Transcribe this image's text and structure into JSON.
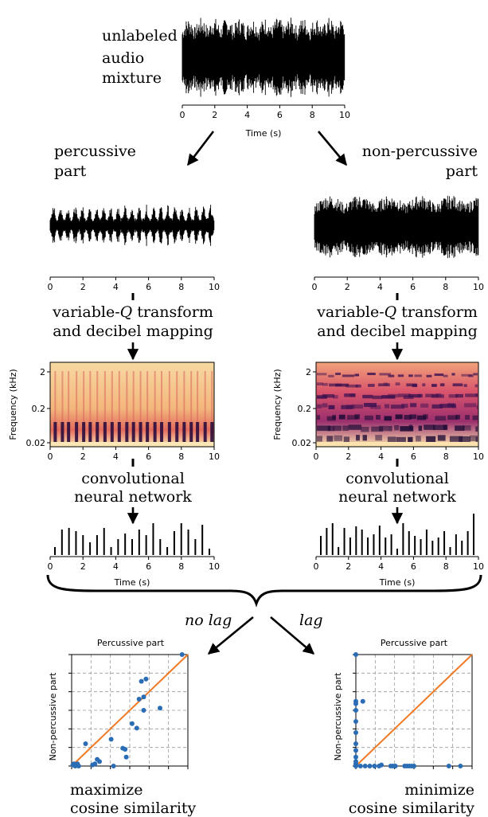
{
  "top": {
    "label_lines": [
      "unlabeled",
      "audio",
      "mixture"
    ],
    "xlabel": "Time (s)",
    "ticks": [
      "0",
      "2",
      "4",
      "6",
      "8",
      "10"
    ]
  },
  "branches": {
    "left_title_lines": [
      "percussive",
      "part"
    ],
    "right_title_lines": [
      "non-percussive",
      "part"
    ]
  },
  "waveform_ticks": [
    "0",
    "2",
    "4",
    "6",
    "8",
    "10"
  ],
  "transform_label": {
    "line1_prefix": "variable-",
    "line1_italic": "Q",
    "line1_suffix": " transform",
    "line2": "and decibel mapping"
  },
  "spectrogram": {
    "ylabel": "Frequency (kHz)",
    "yticks": [
      "2",
      "0.2",
      "0.02"
    ],
    "xticks": [
      "0",
      "2",
      "4",
      "6",
      "8",
      "10"
    ]
  },
  "network_label": [
    "convolutional",
    "neural network"
  ],
  "activation_xlabel": "Time (s)",
  "activation_ticks": [
    "0",
    "2",
    "4",
    "6",
    "8",
    "10"
  ],
  "merge": {
    "no_lag": "no lag",
    "lag": "lag"
  },
  "chart_data": [
    {
      "type": "scatter",
      "title": "Percussive part",
      "xlabel": "",
      "ylabel": "Non-percussive part",
      "grid": true,
      "xlim": [
        0,
        1
      ],
      "ylim": [
        0,
        1
      ],
      "series": [
        {
          "x": [
            0.01,
            0.02,
            0.03,
            0.04,
            0.05,
            0.06,
            0.12,
            0.18,
            0.2,
            0.22,
            0.24,
            0.34,
            0.36,
            0.44,
            0.46,
            0.47,
            0.52,
            0.56,
            0.58,
            0.6,
            0.62,
            0.64,
            0.62,
            0.76,
            0.95
          ],
          "y": [
            0.01,
            0.02,
            0.0,
            0.01,
            0.02,
            0.0,
            0.2,
            0.01,
            0.02,
            0.06,
            0.04,
            0.24,
            0.0,
            0.16,
            0.15,
            0.08,
            0.38,
            0.34,
            0.6,
            0.76,
            0.5,
            0.78,
            0.62,
            0.52,
            1.0
          ]
        }
      ],
      "diagonal": true,
      "caption": "maximize cosine similarity",
      "caption_lines": [
        "maximize",
        "cosine similarity"
      ]
    },
    {
      "type": "scatter",
      "title": "Percussive part",
      "xlabel": "",
      "ylabel": "Non-percussive part",
      "grid": true,
      "xlim": [
        0,
        1
      ],
      "ylim": [
        0,
        1
      ],
      "series": [
        {
          "x": [
            0.0,
            0.0,
            0.0,
            0.0,
            0.0,
            0.0,
            0.0,
            0.0,
            0.0,
            0.0,
            0.0,
            0.0,
            0.0,
            0.06,
            0.04,
            0.08,
            0.12,
            0.16,
            0.2,
            0.22,
            0.3,
            0.32,
            0.34,
            0.42,
            0.44,
            0.46,
            0.48,
            0.5,
            0.8,
            0.9
          ],
          "y": [
            1.0,
            0.58,
            0.56,
            0.5,
            0.4,
            0.3,
            0.2,
            0.14,
            0.08,
            0.04,
            0.02,
            0.01,
            0.0,
            0.58,
            0.0,
            0.0,
            0.0,
            0.0,
            0.0,
            0.01,
            0.0,
            0.0,
            0.0,
            0.0,
            0.0,
            0.0,
            0.0,
            0.0,
            0.0,
            0.0
          ]
        }
      ],
      "diagonal": true,
      "caption": "minimize cosine similarity",
      "caption_lines": [
        "minimize",
        "cosine similarity"
      ]
    }
  ]
}
